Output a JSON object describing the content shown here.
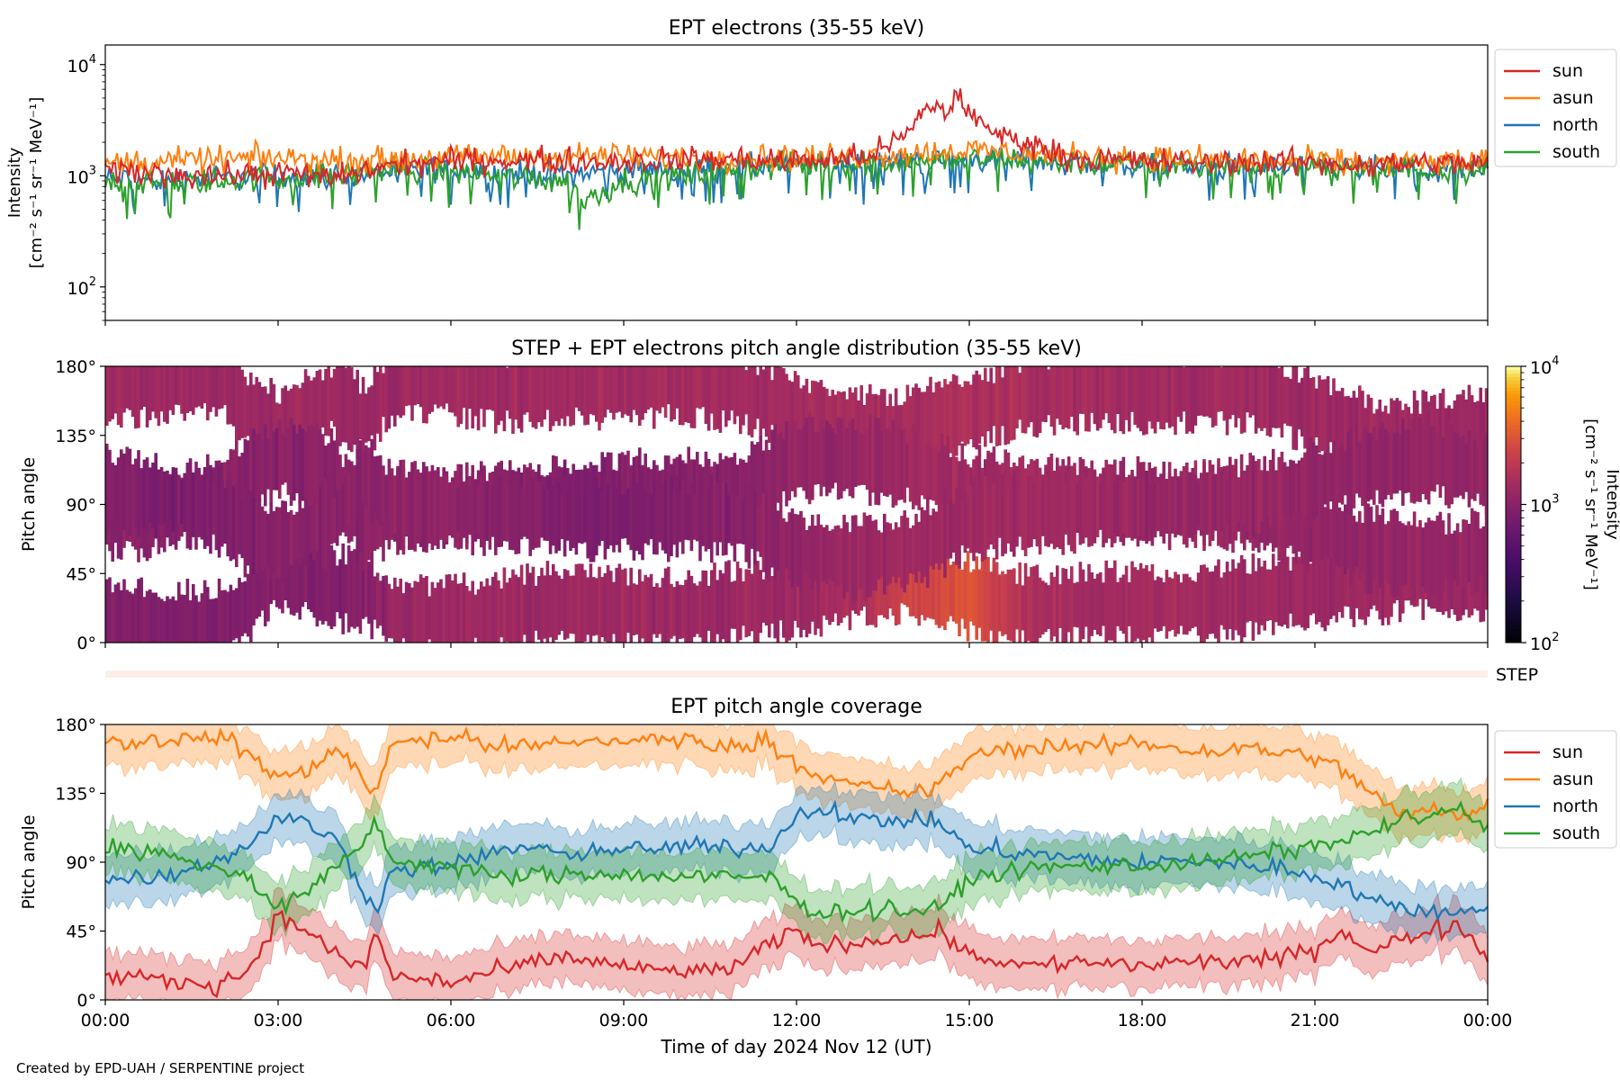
{
  "footer": "Created by EPD-UAH / SERPENTINE project",
  "time_ticks": [
    "00:00",
    "03:00",
    "06:00",
    "09:00",
    "12:00",
    "15:00",
    "18:00",
    "21:00",
    "00:00"
  ],
  "xlabel": "Time of day 2024 Nov 12 (UT)",
  "angle_ticks": [
    "0°",
    "45°",
    "90°",
    "135°",
    "180°"
  ],
  "step_label": "STEP",
  "colors": {
    "sun": "#d62728",
    "asun": "#ff7f0e",
    "north": "#1f77b4",
    "south": "#2ca02c"
  },
  "chart_data": [
    {
      "type": "line",
      "title": "EPT electrons (35-55 keV)",
      "ylabel": [
        "Intensity",
        "[cm⁻² s⁻¹ sr⁻¹ MeV⁻¹]"
      ],
      "yscale": "log",
      "ylim": [
        50,
        15000
      ],
      "yticks": [
        {
          "value": 100,
          "base": "10",
          "exp": "2"
        },
        {
          "value": 1000,
          "base": "10",
          "exp": "3"
        },
        {
          "value": 10000,
          "base": "10",
          "exp": "4"
        }
      ],
      "xlim_hours": [
        0,
        24
      ],
      "legend": "right-outside",
      "series": [
        {
          "name": "sun",
          "key": "sun",
          "x": [
            0,
            1,
            2,
            3,
            4,
            5,
            6,
            7,
            8,
            9,
            10,
            11,
            12,
            13,
            13.5,
            14,
            14.3,
            14.6,
            14.8,
            15,
            15.3,
            15.6,
            16,
            16.5,
            17,
            18,
            19,
            20,
            21,
            22,
            23,
            24
          ],
          "y": [
            1100,
            1050,
            1000,
            1050,
            950,
            1250,
            1350,
            1400,
            1350,
            1350,
            1400,
            1400,
            1350,
            1450,
            1700,
            2500,
            4500,
            3500,
            5600,
            3600,
            2600,
            2300,
            2000,
            1600,
            1400,
            1350,
            1300,
            1350,
            1300,
            1250,
            1300,
            1300
          ]
        },
        {
          "name": "asun",
          "key": "asun",
          "x": [
            0,
            1,
            2,
            3,
            4,
            5,
            6,
            7,
            8,
            9,
            10,
            11,
            12,
            13,
            14,
            15,
            16,
            17,
            18,
            19,
            20,
            21,
            22,
            23,
            24
          ],
          "y": [
            1300,
            1350,
            1400,
            1450,
            1350,
            1400,
            1450,
            1500,
            1500,
            1500,
            1450,
            1500,
            1450,
            1500,
            1600,
            1700,
            1600,
            1500,
            1450,
            1400,
            1350,
            1350,
            1300,
            1300,
            1350
          ]
        },
        {
          "name": "north",
          "key": "north",
          "x": [
            0,
            1,
            2,
            3,
            4,
            5,
            6,
            7,
            8,
            9,
            10,
            11,
            12,
            13,
            14,
            15,
            16,
            17,
            18,
            19,
            20,
            21,
            22,
            23,
            24
          ],
          "y": [
            950,
            900,
            950,
            1000,
            1000,
            1100,
            1150,
            1050,
            1050,
            1100,
            1150,
            1200,
            1250,
            1300,
            1350,
            1400,
            1400,
            1300,
            1250,
            1200,
            1200,
            1150,
            1150,
            1150,
            1100
          ]
        },
        {
          "name": "south",
          "key": "south",
          "x": [
            0,
            1,
            2,
            3,
            4,
            5,
            6,
            7,
            8,
            8.3,
            8.6,
            9,
            10,
            11,
            12,
            13,
            14,
            15,
            16,
            17,
            18,
            19,
            20,
            21,
            22,
            23,
            24
          ],
          "y": [
            900,
            850,
            900,
            950,
            1000,
            1150,
            1100,
            1000,
            900,
            600,
            700,
            900,
            1000,
            1150,
            1250,
            1300,
            1350,
            1400,
            1350,
            1300,
            1250,
            1200,
            1200,
            1150,
            1150,
            1150,
            1150
          ]
        }
      ]
    },
    {
      "type": "heatmap",
      "title": "STEP + EPT electrons pitch angle distribution (35-55 keV)",
      "ylabel": "Pitch angle",
      "ylim": [
        0,
        180
      ],
      "xlim_hours": [
        0,
        24
      ],
      "colorbar": {
        "label": [
          "Intensity",
          "[cm⁻² s⁻¹ sr⁻¹ MeV⁻¹]"
        ],
        "scale": "log",
        "range": [
          100,
          10000
        ],
        "colormap": "inferno",
        "ticks": [
          {
            "value": 100,
            "base": "10",
            "exp": "2"
          },
          {
            "value": 1000,
            "base": "10",
            "exp": "3"
          },
          {
            "value": 10000,
            "base": "10",
            "exp": "4"
          }
        ]
      },
      "channels": [
        {
          "key": "sun",
          "x": [
            0,
            1,
            2,
            2.5,
            3,
            4,
            4.5,
            5,
            6,
            7,
            8,
            9,
            10,
            11,
            12,
            13,
            14,
            15,
            16,
            17,
            18,
            19,
            20,
            21,
            22,
            23,
            24
          ],
          "y": [
            15,
            12,
            12,
            25,
            50,
            35,
            35,
            18,
            15,
            20,
            25,
            22,
            20,
            25,
            30,
            38,
            42,
            30,
            22,
            25,
            25,
            25,
            30,
            35,
            40,
            45,
            40
          ],
          "intensity": [
            900,
            900,
            900,
            900,
            1000,
            900,
            1000,
            1200,
            1300,
            1300,
            1300,
            1300,
            1300,
            1300,
            1300,
            1500,
            2500,
            3000,
            1600,
            1400,
            1400,
            1400,
            1300,
            1300,
            1300,
            1300,
            1300
          ]
        },
        {
          "key": "asun",
          "x": [
            0,
            1,
            2,
            2.5,
            3,
            4,
            4.5,
            5,
            6,
            7,
            8,
            9,
            10,
            11,
            12,
            13,
            14,
            15,
            16,
            17,
            18,
            19,
            20,
            21,
            22,
            23,
            24
          ],
          "y": [
            168,
            170,
            172,
            150,
            140,
            160,
            145,
            170,
            170,
            165,
            168,
            168,
            170,
            165,
            150,
            140,
            140,
            150,
            162,
            165,
            165,
            165,
            165,
            150,
            135,
            135,
            140
          ],
          "intensity": [
            1300,
            1300,
            1300,
            1300,
            1300,
            1300,
            1300,
            1300,
            1350,
            1350,
            1400,
            1400,
            1400,
            1400,
            1400,
            1450,
            1500,
            1600,
            1500,
            1450,
            1400,
            1400,
            1350,
            1300,
            1300,
            1300,
            1300
          ]
        },
        {
          "key": "north",
          "x": [
            0,
            1,
            2,
            2.5,
            3,
            4,
            4.5,
            5,
            6,
            7,
            8,
            9,
            10,
            11,
            12,
            13,
            14,
            15,
            16,
            17,
            18,
            19,
            20,
            21,
            22,
            23,
            24
          ],
          "y": [
            78,
            85,
            95,
            110,
            120,
            110,
            70,
            85,
            88,
            92,
            95,
            97,
            98,
            100,
            120,
            120,
            115,
            100,
            95,
            92,
            92,
            90,
            85,
            75,
            60,
            55,
            60
          ],
          "intensity": [
            1000,
            1000,
            1000,
            1000,
            1000,
            1000,
            1000,
            1050,
            1100,
            1000,
            900,
            900,
            950,
            1000,
            1150,
            1200,
            1300,
            1350,
            1350,
            1250,
            1200,
            1200,
            1150,
            1150,
            1150,
            1150,
            1150
          ]
        },
        {
          "key": "south",
          "x": [
            0,
            1,
            2,
            2.5,
            3,
            4,
            4.5,
            5,
            6,
            7,
            8,
            9,
            10,
            11,
            12,
            13,
            14,
            15,
            16,
            17,
            18,
            19,
            20,
            21,
            22,
            23,
            24
          ],
          "y": [
            100,
            95,
            85,
            70,
            65,
            80,
            110,
            90,
            87,
            85,
            82,
            82,
            82,
            80,
            60,
            55,
            60,
            80,
            85,
            88,
            88,
            90,
            95,
            105,
            115,
            120,
            110
          ],
          "intensity": [
            900,
            850,
            900,
            950,
            1000,
            1000,
            1000,
            1100,
            1100,
            1000,
            850,
            850,
            900,
            1000,
            1150,
            1200,
            1300,
            1350,
            1350,
            1300,
            1250,
            1200,
            1200,
            1150,
            1150,
            1150,
            1150
          ]
        }
      ]
    },
    {
      "type": "line",
      "title": "EPT pitch angle coverage",
      "ylabel": "Pitch angle",
      "ylim": [
        0,
        180
      ],
      "xlim_hours": [
        0,
        24
      ],
      "legend": "right-outside",
      "series": [
        {
          "name": "sun",
          "key": "sun",
          "x": [
            0,
            1,
            2,
            2.5,
            3,
            3.5,
            4,
            4.5,
            4.7,
            5,
            6,
            7,
            8,
            9,
            10,
            11,
            11.5,
            12,
            12.5,
            13,
            14,
            14.5,
            15,
            16,
            17,
            18,
            19,
            20,
            21,
            21.5,
            22,
            22.5,
            23,
            23.5,
            24
          ],
          "y": [
            15,
            12,
            10,
            20,
            55,
            45,
            30,
            20,
            45,
            15,
            12,
            20,
            28,
            22,
            18,
            22,
            35,
            45,
            35,
            38,
            42,
            45,
            30,
            22,
            25,
            22,
            25,
            25,
            32,
            45,
            30,
            40,
            45,
            50,
            30
          ]
        },
        {
          "name": "asun",
          "key": "asun",
          "x": [
            0,
            1,
            2,
            2.5,
            3,
            3.5,
            4,
            4.5,
            4.7,
            5,
            6,
            7,
            8,
            9,
            10,
            11,
            11.5,
            12,
            12.5,
            13,
            14,
            14.5,
            15,
            16,
            17,
            18,
            19,
            20,
            21,
            21.5,
            22,
            22.5,
            23,
            23.5,
            24
          ],
          "y": [
            168,
            170,
            172,
            160,
            145,
            150,
            165,
            145,
            135,
            170,
            172,
            165,
            168,
            170,
            170,
            165,
            170,
            155,
            145,
            140,
            135,
            140,
            160,
            165,
            165,
            168,
            162,
            165,
            158,
            150,
            135,
            120,
            125,
            120,
            130
          ]
        },
        {
          "name": "north",
          "key": "north",
          "x": [
            0,
            1,
            2,
            2.5,
            3,
            3.5,
            4,
            4.5,
            4.7,
            5,
            6,
            7,
            8,
            9,
            10,
            11,
            11.5,
            12,
            12.5,
            13,
            14,
            14.5,
            15,
            16,
            17,
            18,
            19,
            20,
            21,
            21.5,
            22,
            22.5,
            23,
            23.5,
            24
          ],
          "y": [
            78,
            82,
            92,
            100,
            120,
            115,
            105,
            70,
            60,
            85,
            88,
            100,
            95,
            98,
            100,
            100,
            100,
            120,
            125,
            118,
            118,
            115,
            100,
            95,
            92,
            90,
            90,
            88,
            82,
            75,
            65,
            60,
            58,
            58,
            60
          ]
        },
        {
          "name": "south",
          "key": "south",
          "x": [
            0,
            1,
            2,
            2.5,
            3,
            3.5,
            4,
            4.5,
            4.7,
            5,
            6,
            7,
            8,
            9,
            10,
            11,
            11.5,
            12,
            12.5,
            13,
            14,
            14.5,
            15,
            16,
            17,
            18,
            19,
            20,
            21,
            21.5,
            22,
            22.5,
            23,
            23.5,
            24
          ],
          "y": [
            100,
            95,
            85,
            80,
            60,
            70,
            85,
            105,
            115,
            90,
            87,
            80,
            82,
            82,
            80,
            80,
            80,
            65,
            55,
            60,
            58,
            60,
            80,
            85,
            88,
            88,
            90,
            95,
            100,
            105,
            110,
            118,
            120,
            125,
            110
          ]
        }
      ]
    }
  ]
}
